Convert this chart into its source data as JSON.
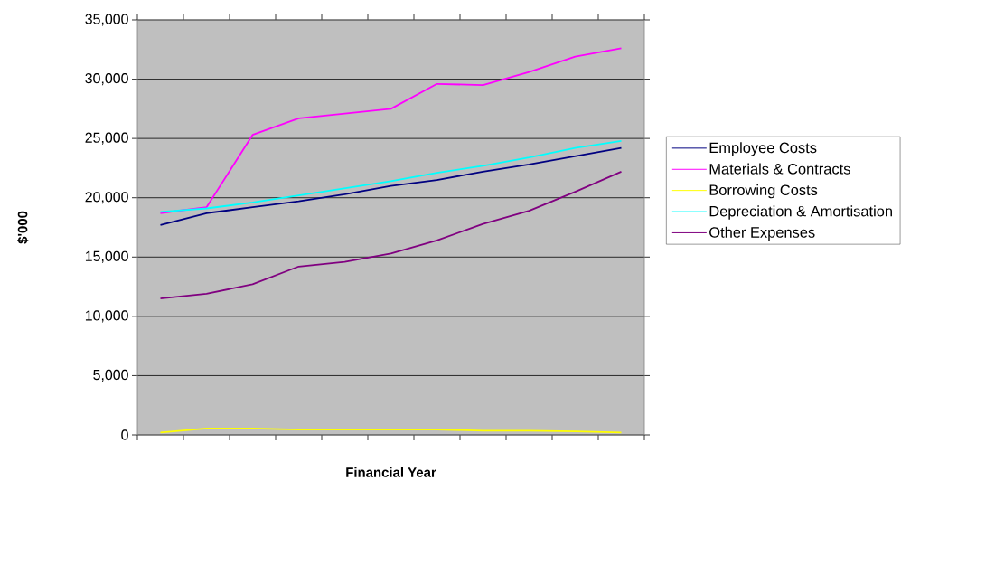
{
  "chart_data": {
    "type": "line",
    "xlabel": "Financial Year",
    "ylabel": "$'000",
    "categories": [
      null,
      null,
      null,
      null,
      null,
      null,
      null,
      null,
      null,
      null,
      null
    ],
    "series": [
      {
        "name": "Employee Costs",
        "color": "#000080",
        "values": [
          17700,
          18700,
          19200,
          19700,
          20300,
          21000,
          21500,
          22200,
          22800,
          23500,
          24200
        ]
      },
      {
        "name": "Materials & Contracts",
        "color": "#ff00ff",
        "values": [
          18700,
          19200,
          25300,
          26700,
          27100,
          27500,
          29600,
          29500,
          30600,
          31900,
          32600
        ]
      },
      {
        "name": "Borrowing Costs",
        "color": "#ffff00",
        "values": [
          200,
          550,
          550,
          450,
          450,
          450,
          450,
          350,
          350,
          300,
          200
        ]
      },
      {
        "name": "Depreciation & Amortisation",
        "color": "#00ffff",
        "values": [
          18800,
          19100,
          19600,
          20200,
          20800,
          21400,
          22100,
          22700,
          23400,
          24200,
          24800
        ]
      },
      {
        "name": "Other Expenses",
        "color": "#800080",
        "values": [
          11500,
          11900,
          12700,
          14200,
          14600,
          15300,
          16400,
          17800,
          18900,
          20500,
          22200
        ]
      }
    ],
    "ylim": [
      0,
      35000
    ],
    "yticks": [
      0,
      {
        "value": 5000,
        "label": "5,000"
      },
      {
        "value": 10000,
        "label": "10,000"
      },
      {
        "value": 15000,
        "label": "15,000"
      },
      {
        "value": 20000,
        "label": "20,000"
      },
      {
        "value": 25000,
        "label": "25,000"
      },
      {
        "value": 30000,
        "label": "30,000"
      },
      {
        "value": 35000,
        "label": "35,000"
      }
    ],
    "grid": "y",
    "legend": "right",
    "tick_labels": "y",
    "marker": "none",
    "line_style": "solid"
  }
}
